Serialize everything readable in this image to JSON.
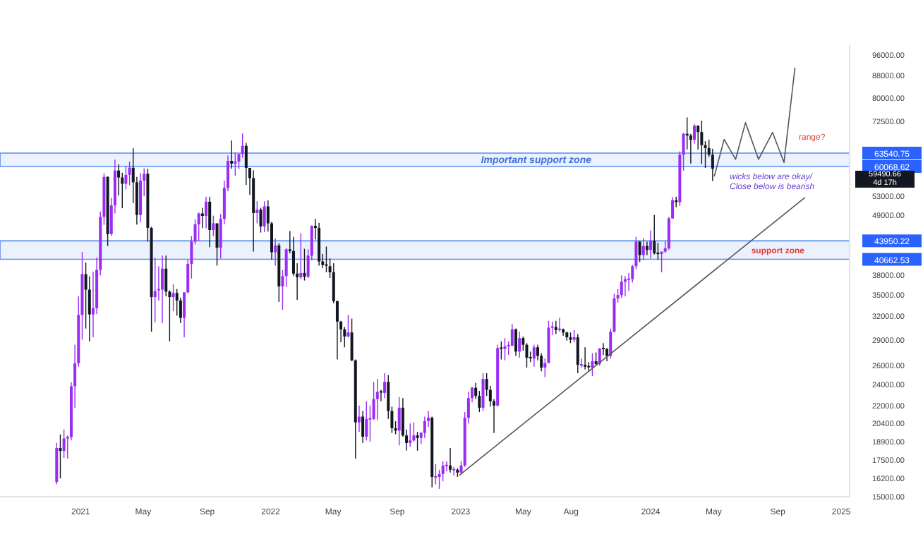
{
  "chart_data": {
    "type": "candlestick",
    "log": "y",
    "x": [
      "2020-11-16",
      "2020-11-23",
      "2020-11-30",
      "2020-12-07",
      "2020-12-14",
      "2020-12-21",
      "2020-12-28",
      "2021-01-04",
      "2021-01-11",
      "2021-01-18",
      "2021-01-25",
      "2021-02-01",
      "2021-02-08",
      "2021-02-15",
      "2021-02-22",
      "2021-03-01",
      "2021-03-08",
      "2021-03-15",
      "2021-03-22",
      "2021-03-29",
      "2021-04-05",
      "2021-04-12",
      "2021-04-19",
      "2021-04-26",
      "2021-05-03",
      "2021-05-10",
      "2021-05-17",
      "2021-05-24",
      "2021-05-31",
      "2021-06-07",
      "2021-06-14",
      "2021-06-21",
      "2021-06-28",
      "2021-07-05",
      "2021-07-12",
      "2021-07-19",
      "2021-07-26",
      "2021-08-02",
      "2021-08-09",
      "2021-08-16",
      "2021-08-23",
      "2021-08-30",
      "2021-09-06",
      "2021-09-13",
      "2021-09-20",
      "2021-09-27",
      "2021-10-04",
      "2021-10-11",
      "2021-10-18",
      "2021-10-25",
      "2021-11-01",
      "2021-11-08",
      "2021-11-15",
      "2021-11-22",
      "2021-11-29",
      "2021-12-06",
      "2021-12-13",
      "2021-12-20",
      "2021-12-27",
      "2022-01-03",
      "2022-01-10",
      "2022-01-17",
      "2022-01-24",
      "2022-01-31",
      "2022-02-07",
      "2022-02-14",
      "2022-02-21",
      "2022-02-28",
      "2022-03-07",
      "2022-03-14",
      "2022-03-21",
      "2022-03-28",
      "2022-04-04",
      "2022-04-11",
      "2022-04-18",
      "2022-04-25",
      "2022-05-02",
      "2022-05-09",
      "2022-05-16",
      "2022-05-23",
      "2022-05-30",
      "2022-06-06",
      "2022-06-13",
      "2022-06-20",
      "2022-06-27",
      "2022-07-04",
      "2022-07-11",
      "2022-07-18",
      "2022-07-25",
      "2022-08-01",
      "2022-08-08",
      "2022-08-15",
      "2022-08-22",
      "2022-08-29",
      "2022-09-05",
      "2022-09-12",
      "2022-09-19",
      "2022-09-26",
      "2022-10-03",
      "2022-10-10",
      "2022-10-17",
      "2022-10-24",
      "2022-10-31",
      "2022-11-07",
      "2022-11-14",
      "2022-11-21",
      "2022-11-28",
      "2022-12-05",
      "2022-12-12",
      "2022-12-19",
      "2022-12-26",
      "2023-01-02",
      "2023-01-09",
      "2023-01-16",
      "2023-01-23",
      "2023-01-30",
      "2023-02-06",
      "2023-02-13",
      "2023-02-20",
      "2023-02-27",
      "2023-03-06",
      "2023-03-13",
      "2023-03-20",
      "2023-03-27",
      "2023-04-03",
      "2023-04-10",
      "2023-04-17",
      "2023-04-24",
      "2023-05-01",
      "2023-05-08",
      "2023-05-15",
      "2023-05-22",
      "2023-05-29",
      "2023-06-05",
      "2023-06-12",
      "2023-06-19",
      "2023-06-26",
      "2023-07-03",
      "2023-07-10",
      "2023-07-17",
      "2023-07-24",
      "2023-07-31",
      "2023-08-07",
      "2023-08-14",
      "2023-08-21",
      "2023-08-28",
      "2023-09-04",
      "2023-09-11",
      "2023-09-18",
      "2023-09-25",
      "2023-10-02",
      "2023-10-09",
      "2023-10-16",
      "2023-10-23",
      "2023-10-30",
      "2023-11-06",
      "2023-11-13",
      "2023-11-20",
      "2023-11-27",
      "2023-12-04",
      "2023-12-11",
      "2023-12-18",
      "2023-12-25",
      "2024-01-01",
      "2024-01-08",
      "2024-01-15",
      "2024-01-22",
      "2024-01-29",
      "2024-02-05",
      "2024-02-12",
      "2024-02-19",
      "2024-02-26",
      "2024-03-04",
      "2024-03-11",
      "2024-03-18",
      "2024-03-25",
      "2024-04-01",
      "2024-04-08",
      "2024-04-15",
      "2024-04-22",
      "2024-04-29"
    ],
    "ohlc": [
      [
        15960,
        18800,
        15800,
        18400
      ],
      [
        18400,
        19480,
        16200,
        18180
      ],
      [
        18180,
        19900,
        17650,
        19150
      ],
      [
        19150,
        19400,
        17600,
        19270
      ],
      [
        19270,
        24250,
        19000,
        23850
      ],
      [
        23850,
        28400,
        21800,
        26270
      ],
      [
        26270,
        34800,
        25900,
        32200
      ],
      [
        32200,
        41950,
        29000,
        38200
      ],
      [
        38200,
        40100,
        30400,
        35800
      ],
      [
        35800,
        37850,
        28800,
        32260
      ],
      [
        32260,
        38600,
        29300,
        33100
      ],
      [
        33100,
        40950,
        32300,
        38900
      ],
      [
        38900,
        49700,
        38000,
        48600
      ],
      [
        48600,
        58350,
        47000,
        57500
      ],
      [
        57500,
        57600,
        43000,
        45200
      ],
      [
        45200,
        52650,
        44900,
        51000
      ],
      [
        51000,
        61800,
        49300,
        59050
      ],
      [
        59050,
        60600,
        53200,
        57350
      ],
      [
        57350,
        58500,
        50400,
        55850
      ],
      [
        55850,
        60200,
        54600,
        58000
      ],
      [
        58000,
        61300,
        55500,
        59750
      ],
      [
        59750,
        64850,
        51500,
        56200
      ],
      [
        56200,
        57500,
        47050,
        49000
      ],
      [
        49000,
        58400,
        47500,
        56600
      ],
      [
        56600,
        59600,
        53000,
        58250
      ],
      [
        58250,
        59500,
        43800,
        46400
      ],
      [
        46400,
        46600,
        30000,
        34700
      ],
      [
        34700,
        40900,
        31200,
        35600
      ],
      [
        35600,
        39500,
        34200,
        35800
      ],
      [
        35800,
        41300,
        31100,
        39100
      ],
      [
        39100,
        41300,
        34800,
        35500
      ],
      [
        35500,
        35700,
        28800,
        34700
      ],
      [
        34700,
        36600,
        32700,
        35300
      ],
      [
        35300,
        35900,
        32100,
        34200
      ],
      [
        34200,
        34600,
        31100,
        31800
      ],
      [
        31800,
        35400,
        29300,
        35400
      ],
      [
        35400,
        40600,
        35200,
        39900
      ],
      [
        39900,
        44800,
        37500,
        43800
      ],
      [
        43800,
        48100,
        43300,
        47100
      ],
      [
        47100,
        49500,
        43900,
        49300
      ],
      [
        49300,
        50500,
        46400,
        48800
      ],
      [
        48800,
        52900,
        46300,
        51800
      ],
      [
        51800,
        52900,
        42800,
        46000
      ],
      [
        46000,
        48850,
        44800,
        47300
      ],
      [
        47300,
        47300,
        39600,
        42700
      ],
      [
        42700,
        49200,
        40800,
        48200
      ],
      [
        48200,
        56600,
        47100,
        54900
      ],
      [
        54900,
        62900,
        54100,
        61500
      ],
      [
        61500,
        67000,
        59500,
        60800
      ],
      [
        60800,
        63700,
        57800,
        61300
      ],
      [
        61300,
        63400,
        59400,
        63300
      ],
      [
        63300,
        69000,
        62300,
        65500
      ],
      [
        65500,
        66300,
        55600,
        59700
      ],
      [
        59700,
        59700,
        53300,
        57200
      ],
      [
        57200,
        59100,
        42000,
        49400
      ],
      [
        49400,
        51900,
        47300,
        50100
      ],
      [
        50100,
        50500,
        45500,
        46700
      ],
      [
        46700,
        51900,
        45600,
        50800
      ],
      [
        50800,
        52100,
        45700,
        47300
      ],
      [
        47300,
        47600,
        40600,
        41900
      ],
      [
        41900,
        44400,
        39600,
        43100
      ],
      [
        43100,
        43500,
        34000,
        36300
      ],
      [
        36300,
        38900,
        32900,
        37900
      ],
      [
        37900,
        42600,
        36200,
        42400
      ],
      [
        42400,
        45800,
        41700,
        42100
      ],
      [
        42100,
        44700,
        37900,
        38300
      ],
      [
        38300,
        40000,
        34300,
        37700
      ],
      [
        37700,
        45400,
        37400,
        38400
      ],
      [
        38400,
        42500,
        37200,
        37800
      ],
      [
        37800,
        42400,
        37600,
        41300
      ],
      [
        41300,
        46900,
        40500,
        46800
      ],
      [
        46800,
        48200,
        44200,
        46400
      ],
      [
        46400,
        47400,
        39600,
        40300
      ],
      [
        40300,
        41600,
        39200,
        39700
      ],
      [
        39700,
        42900,
        38500,
        39500
      ],
      [
        39500,
        40800,
        37600,
        38500
      ],
      [
        38500,
        40000,
        33800,
        34100
      ],
      [
        34100,
        34200,
        26700,
        31300
      ],
      [
        31300,
        31400,
        28700,
        30300
      ],
      [
        30300,
        30600,
        28100,
        29400
      ],
      [
        29400,
        32200,
        29300,
        29900
      ],
      [
        29900,
        31700,
        26500,
        26600
      ],
      [
        26600,
        26700,
        17600,
        20500
      ],
      [
        20500,
        22000,
        19700,
        21000
      ],
      [
        21000,
        21500,
        18800,
        19300
      ],
      [
        19300,
        22400,
        19000,
        20800
      ],
      [
        20800,
        22000,
        18900,
        20800
      ],
      [
        20800,
        24300,
        20700,
        22600
      ],
      [
        22600,
        24600,
        20700,
        23300
      ],
      [
        23300,
        23500,
        22400,
        23200
      ],
      [
        23200,
        25200,
        22700,
        24300
      ],
      [
        24300,
        25000,
        20800,
        21500
      ],
      [
        21500,
        21900,
        19600,
        20000
      ],
      [
        20000,
        20600,
        19500,
        19800
      ],
      [
        19800,
        22800,
        18600,
        21800
      ],
      [
        21800,
        22700,
        19300,
        19400
      ],
      [
        19400,
        19900,
        18200,
        18800
      ],
      [
        18800,
        20400,
        18500,
        19000
      ],
      [
        19000,
        20500,
        18900,
        19400
      ],
      [
        19400,
        19700,
        18200,
        19200
      ],
      [
        19200,
        19700,
        18700,
        19600
      ],
      [
        19600,
        21000,
        19200,
        20600
      ],
      [
        20600,
        21500,
        20100,
        20900
      ],
      [
        20900,
        21000,
        15600,
        16300
      ],
      [
        16300,
        17200,
        15800,
        16300
      ],
      [
        16300,
        16800,
        15500,
        16500
      ],
      [
        16500,
        17400,
        16000,
        17100
      ],
      [
        17100,
        17400,
        16700,
        17100
      ],
      [
        17100,
        18400,
        16600,
        16800
      ],
      [
        16800,
        17000,
        16400,
        16800
      ],
      [
        16800,
        16900,
        16300,
        16600
      ],
      [
        16600,
        17400,
        16500,
        17100
      ],
      [
        17100,
        21400,
        17000,
        20900
      ],
      [
        20900,
        23300,
        20400,
        22700
      ],
      [
        22700,
        23800,
        22300,
        23700
      ],
      [
        23700,
        24200,
        22600,
        22900
      ],
      [
        22900,
        23400,
        21400,
        21800
      ],
      [
        21800,
        25200,
        21500,
        24600
      ],
      [
        24600,
        25200,
        22900,
        23500
      ],
      [
        23500,
        23900,
        21900,
        22400
      ],
      [
        22400,
        22600,
        19600,
        22000
      ],
      [
        22000,
        28400,
        21900,
        28000
      ],
      [
        28000,
        28800,
        26700,
        27900
      ],
      [
        27900,
        29200,
        26600,
        28200
      ],
      [
        28200,
        28800,
        27200,
        28300
      ],
      [
        28300,
        31000,
        28200,
        30300
      ],
      [
        30300,
        30400,
        27100,
        27600
      ],
      [
        27600,
        30000,
        26900,
        29200
      ],
      [
        29200,
        29400,
        27700,
        28400
      ],
      [
        28400,
        28600,
        25800,
        26900
      ],
      [
        26900,
        27600,
        26400,
        26800
      ],
      [
        26800,
        28400,
        25900,
        28100
      ],
      [
        28100,
        28400,
        26600,
        27100
      ],
      [
        27100,
        27400,
        25400,
        25800
      ],
      [
        25800,
        26800,
        24800,
        26300
      ],
      [
        26300,
        31400,
        26300,
        30500
      ],
      [
        30500,
        31300,
        29600,
        30600
      ],
      [
        30600,
        31400,
        29700,
        30200
      ],
      [
        30200,
        31800,
        30000,
        30300
      ],
      [
        30300,
        30400,
        29500,
        29900
      ],
      [
        29900,
        30000,
        28900,
        29300
      ],
      [
        29300,
        29900,
        28600,
        29000
      ],
      [
        29000,
        30200,
        28700,
        29300
      ],
      [
        29300,
        29700,
        25200,
        26100
      ],
      [
        26100,
        26800,
        25800,
        26100
      ],
      [
        26100,
        28100,
        25600,
        25900
      ],
      [
        25900,
        26400,
        25400,
        25800
      ],
      [
        25800,
        27400,
        24900,
        26500
      ],
      [
        26500,
        27500,
        26100,
        26200
      ],
      [
        26200,
        28000,
        26000,
        27950
      ],
      [
        27950,
        28600,
        27200,
        27900
      ],
      [
        27900,
        28000,
        26500,
        27100
      ],
      [
        27100,
        30400,
        26800,
        30000
      ],
      [
        30000,
        35200,
        29900,
        34500
      ],
      [
        34500,
        35900,
        33900,
        35000
      ],
      [
        35000,
        38000,
        34600,
        37000
      ],
      [
        37000,
        37900,
        34800,
        37400
      ],
      [
        37400,
        38400,
        35600,
        37400
      ],
      [
        37400,
        39700,
        36900,
        39500
      ],
      [
        39500,
        44700,
        39000,
        43800
      ],
      [
        43800,
        43900,
        40200,
        41400
      ],
      [
        41400,
        44400,
        40500,
        43000
      ],
      [
        43000,
        43800,
        41400,
        42300
      ],
      [
        42300,
        45900,
        40800,
        43900
      ],
      [
        43900,
        49000,
        41500,
        41700
      ],
      [
        41700,
        43600,
        40600,
        41600
      ],
      [
        41600,
        42000,
        38500,
        42000
      ],
      [
        42000,
        43900,
        41800,
        42600
      ],
      [
        42600,
        48600,
        42300,
        48300
      ],
      [
        48300,
        52800,
        48200,
        52100
      ],
      [
        52100,
        52900,
        50600,
        51700
      ],
      [
        51700,
        64000,
        50900,
        63100
      ],
      [
        63100,
        69200,
        59000,
        68900
      ],
      [
        68900,
        73800,
        64500,
        68400
      ],
      [
        68400,
        68900,
        60800,
        67200
      ],
      [
        67200,
        71700,
        66100,
        71300
      ],
      [
        71300,
        71400,
        64500,
        69400
      ],
      [
        69400,
        72800,
        60700,
        65700
      ],
      [
        65700,
        66800,
        59700,
        64900
      ],
      [
        64900,
        67200,
        62500,
        63100
      ],
      [
        63100,
        64700,
        56500,
        59490.66
      ]
    ],
    "colors": [
      "#9a2cf5",
      "#131722",
      "#9a2cf5",
      "#9a2cf5",
      "#9a2cf5",
      "#9a2cf5",
      "#9a2cf5",
      "#9a2cf5",
      "#131722",
      "#131722",
      "#9a2cf5",
      "#9a2cf5",
      "#9a2cf5",
      "#9a2cf5",
      "#131722",
      "#9a2cf5",
      "#9a2cf5",
      "#131722",
      "#131722",
      "#9a2cf5",
      "#9a2cf5",
      "#131722",
      "#131722",
      "#9a2cf5",
      "#9a2cf5",
      "#131722",
      "#131722",
      "#9a2cf5",
      "#9a2cf5",
      "#9a2cf5",
      "#131722",
      "#131722",
      "#9a2cf5",
      "#131722",
      "#131722",
      "#9a2cf5",
      "#9a2cf5",
      "#9a2cf5",
      "#9a2cf5",
      "#9a2cf5",
      "#131722",
      "#9a2cf5",
      "#131722",
      "#9a2cf5",
      "#131722",
      "#9a2cf5",
      "#9a2cf5",
      "#9a2cf5",
      "#131722",
      "#9a2cf5",
      "#9a2cf5",
      "#9a2cf5",
      "#131722",
      "#131722",
      "#131722",
      "#9a2cf5",
      "#131722",
      "#9a2cf5",
      "#131722",
      "#131722",
      "#9a2cf5",
      "#131722",
      "#9a2cf5",
      "#9a2cf5",
      "#131722",
      "#131722",
      "#131722",
      "#9a2cf5",
      "#131722",
      "#9a2cf5",
      "#9a2cf5",
      "#131722",
      "#131722",
      "#131722",
      "#131722",
      "#131722",
      "#131722",
      "#131722",
      "#131722",
      "#131722",
      "#9a2cf5",
      "#131722",
      "#131722",
      "#9a2cf5",
      "#131722",
      "#9a2cf5",
      "#9a2cf5",
      "#9a2cf5",
      "#9a2cf5",
      "#131722",
      "#9a2cf5",
      "#131722",
      "#131722",
      "#131722",
      "#9a2cf5",
      "#131722",
      "#131722",
      "#9a2cf5",
      "#9a2cf5",
      "#131722",
      "#9a2cf5",
      "#9a2cf5",
      "#9a2cf5",
      "#131722",
      "#9a2cf5",
      "#9a2cf5",
      "#9a2cf5",
      "#9a2cf5",
      "#131722",
      "#9a2cf5",
      "#131722",
      "#9a2cf5",
      "#9a2cf5",
      "#9a2cf5",
      "#9a2cf5",
      "#131722",
      "#131722",
      "#9a2cf5",
      "#131722",
      "#131722",
      "#131722",
      "#9a2cf5",
      "#131722",
      "#9a2cf5",
      "#9a2cf5",
      "#9a2cf5",
      "#131722",
      "#9a2cf5",
      "#131722",
      "#131722",
      "#131722",
      "#9a2cf5",
      "#131722",
      "#131722",
      "#9a2cf5",
      "#9a2cf5",
      "#9a2cf5",
      "#131722",
      "#9a2cf5",
      "#131722",
      "#131722",
      "#131722",
      "#9a2cf5",
      "#131722",
      "#9a2cf5",
      "#131722",
      "#131722",
      "#9a2cf5",
      "#131722",
      "#9a2cf5",
      "#131722",
      "#131722",
      "#9a2cf5",
      "#9a2cf5",
      "#9a2cf5",
      "#9a2cf5",
      "#9a2cf5",
      "#9a2cf5",
      "#9a2cf5",
      "#9a2cf5",
      "#131722",
      "#9a2cf5",
      "#131722",
      "#9a2cf5",
      "#131722",
      "#131722",
      "#9a2cf5",
      "#9a2cf5",
      "#9a2cf5",
      "#9a2cf5",
      "#131722",
      "#9a2cf5",
      "#9a2cf5",
      "#131722",
      "#131722",
      "#9a2cf5",
      "#131722",
      "#131722",
      "#131722",
      "#131722",
      "#131722"
    ],
    "series": [
      {
        "type": "line",
        "color": "#555555",
        "x": [
          "2022-12-29",
          "2024-10-23"
        ],
        "values": [
          16400,
          52700
        ]
      },
      {
        "type": "line",
        "color": "#555555",
        "x": [
          "2024-05-02",
          "2024-05-21",
          "2024-06-12",
          "2024-07-01",
          "2024-07-26",
          "2024-08-22",
          "2024-09-13",
          "2024-10-04"
        ],
        "values": [
          57600,
          67300,
          61900,
          72200,
          61900,
          69300,
          61100,
          91000
        ]
      }
    ],
    "bands": [
      {
        "axis": "y",
        "from": 60068.62,
        "to": 63540.75,
        "label": "Important support zone",
        "color": "#5b8def"
      },
      {
        "axis": "y",
        "from": 40662.53,
        "to": 43950.22,
        "label": "support zone",
        "color": "#5b8def"
      }
    ],
    "annotations": [
      "range?",
      "wicks below are okay/",
      "Close below is bearish",
      "59490.66",
      "4d 17h"
    ],
    "xlim": [
      "2020-07-30",
      "2025-01-17"
    ],
    "xticks": [
      {
        "value": "2021-01-01",
        "label": "2021"
      },
      {
        "value": "2021-05-01",
        "label": "May"
      },
      {
        "value": "2021-09-01",
        "label": "Sep"
      },
      {
        "value": "2022-01-01",
        "label": "2022"
      },
      {
        "value": "2022-05-01",
        "label": "May"
      },
      {
        "value": "2022-09-01",
        "label": "Sep"
      },
      {
        "value": "2023-01-01",
        "label": "2023"
      },
      {
        "value": "2023-05-01",
        "label": "May"
      },
      {
        "value": "2023-08-01",
        "label": "Aug"
      },
      {
        "value": "2024-01-01",
        "label": "2024"
      },
      {
        "value": "2024-05-01",
        "label": "May"
      },
      {
        "value": "2024-09-01",
        "label": "Sep"
      },
      {
        "value": "2025-01-01",
        "label": "2025"
      }
    ],
    "ylim": [
      15000,
      100000
    ],
    "yticks": [
      {
        "value": 15000,
        "label": "15000.00"
      },
      {
        "value": 16200,
        "label": "16200.00"
      },
      {
        "value": 17500,
        "label": "17500.00"
      },
      {
        "value": 18900,
        "label": "18900.00"
      },
      {
        "value": 20400,
        "label": "20400.00"
      },
      {
        "value": 22000,
        "label": "22000.00"
      },
      {
        "value": 24000,
        "label": "24000.00"
      },
      {
        "value": 26000,
        "label": "26000.00"
      },
      {
        "value": 29000,
        "label": "29000.00"
      },
      {
        "value": 32000,
        "label": "32000.00"
      },
      {
        "value": 35000,
        "label": "35000.00"
      },
      {
        "value": 38000,
        "label": "38000.00"
      },
      {
        "value": 40662.53,
        "label": "40662.53"
      },
      {
        "value": 43950.22,
        "label": "43950.22"
      },
      {
        "value": 49000,
        "label": "49000.00"
      },
      {
        "value": 53000,
        "label": "53000.00"
      },
      {
        "value": 60068.62,
        "label": "60068.62"
      },
      {
        "value": 63540.75,
        "label": "63540.75"
      },
      {
        "value": 72500,
        "label": "72500.00"
      },
      {
        "value": 80000,
        "label": "80000.00"
      },
      {
        "value": 88000,
        "label": "88000.00"
      },
      {
        "value": 96000,
        "label": "96000.00"
      }
    ],
    "grid": false,
    "legend": false
  }
}
